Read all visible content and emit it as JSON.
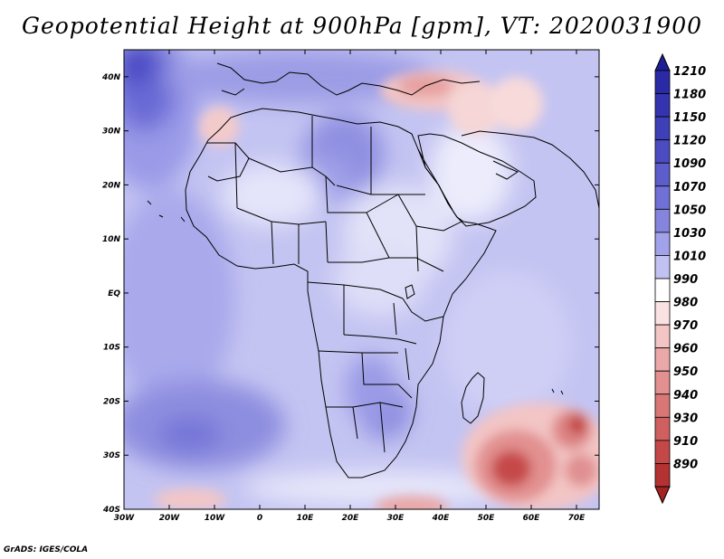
{
  "title": "Geopotential Height at 900hPa [gpm], VT: 2020031900",
  "footer": "GrADS: IGES/COLA",
  "map": {
    "variable": "Geopotential Height",
    "level": "900hPa",
    "units": "gpm",
    "valid_time": "2020031900",
    "lon_range": [
      -30,
      75
    ],
    "lat_range": [
      -40,
      45
    ],
    "lon_ticks": [
      {
        "value": -30,
        "label": "30W"
      },
      {
        "value": -20,
        "label": "20W"
      },
      {
        "value": -10,
        "label": "10W"
      },
      {
        "value": 0,
        "label": "0"
      },
      {
        "value": 10,
        "label": "10E"
      },
      {
        "value": 20,
        "label": "20E"
      },
      {
        "value": 30,
        "label": "30E"
      },
      {
        "value": 40,
        "label": "40E"
      },
      {
        "value": 50,
        "label": "50E"
      },
      {
        "value": 60,
        "label": "60E"
      },
      {
        "value": 70,
        "label": "70E"
      }
    ],
    "lat_ticks": [
      {
        "value": 40,
        "label": "40N"
      },
      {
        "value": 30,
        "label": "30N"
      },
      {
        "value": 20,
        "label": "20N"
      },
      {
        "value": 10,
        "label": "10N"
      },
      {
        "value": 0,
        "label": "EQ"
      },
      {
        "value": -10,
        "label": "10S"
      },
      {
        "value": -20,
        "label": "20S"
      },
      {
        "value": -30,
        "label": "30S"
      },
      {
        "value": -40,
        "label": "40S"
      }
    ],
    "low_centers": [
      {
        "name": "middle-east-low",
        "lon": 37,
        "lat": 37,
        "value": 970
      },
      {
        "name": "atlas-low",
        "lon": -7,
        "lat": 32,
        "value": 990
      },
      {
        "name": "indian-ocean-low-west",
        "lon": 55,
        "lat": -34,
        "value": 930
      },
      {
        "name": "indian-ocean-low-east",
        "lon": 70,
        "lat": -26,
        "value": 940
      },
      {
        "name": "southern-ocean-low",
        "lon": 33,
        "lat": -40,
        "value": 960
      }
    ]
  },
  "colorbar": {
    "levels": [
      {
        "label": "1210",
        "color": "#2a2aa6"
      },
      {
        "label": "1180",
        "color": "#3434b0"
      },
      {
        "label": "1150",
        "color": "#3f3fb8"
      },
      {
        "label": "1120",
        "color": "#4c4cc2"
      },
      {
        "label": "1090",
        "color": "#5d5dcc"
      },
      {
        "label": "1070",
        "color": "#7070d6"
      },
      {
        "label": "1050",
        "color": "#8585de"
      },
      {
        "label": "1030",
        "color": "#a2a2ea"
      },
      {
        "label": "1010",
        "color": "#c2c2f2"
      },
      {
        "label": "990",
        "color": "#ffffff"
      },
      {
        "label": "980",
        "color": "#fbe2e2"
      },
      {
        "label": "970",
        "color": "#f3c5c5"
      },
      {
        "label": "960",
        "color": "#eba8a8"
      },
      {
        "label": "950",
        "color": "#e29090"
      },
      {
        "label": "940",
        "color": "#d97777"
      },
      {
        "label": "930",
        "color": "#d06060"
      },
      {
        "label": "910",
        "color": "#c44848"
      },
      {
        "label": "890",
        "color": "#b43232"
      }
    ],
    "top_arrow_color": "#1f1f95",
    "bottom_arrow_color": "#a32222"
  }
}
